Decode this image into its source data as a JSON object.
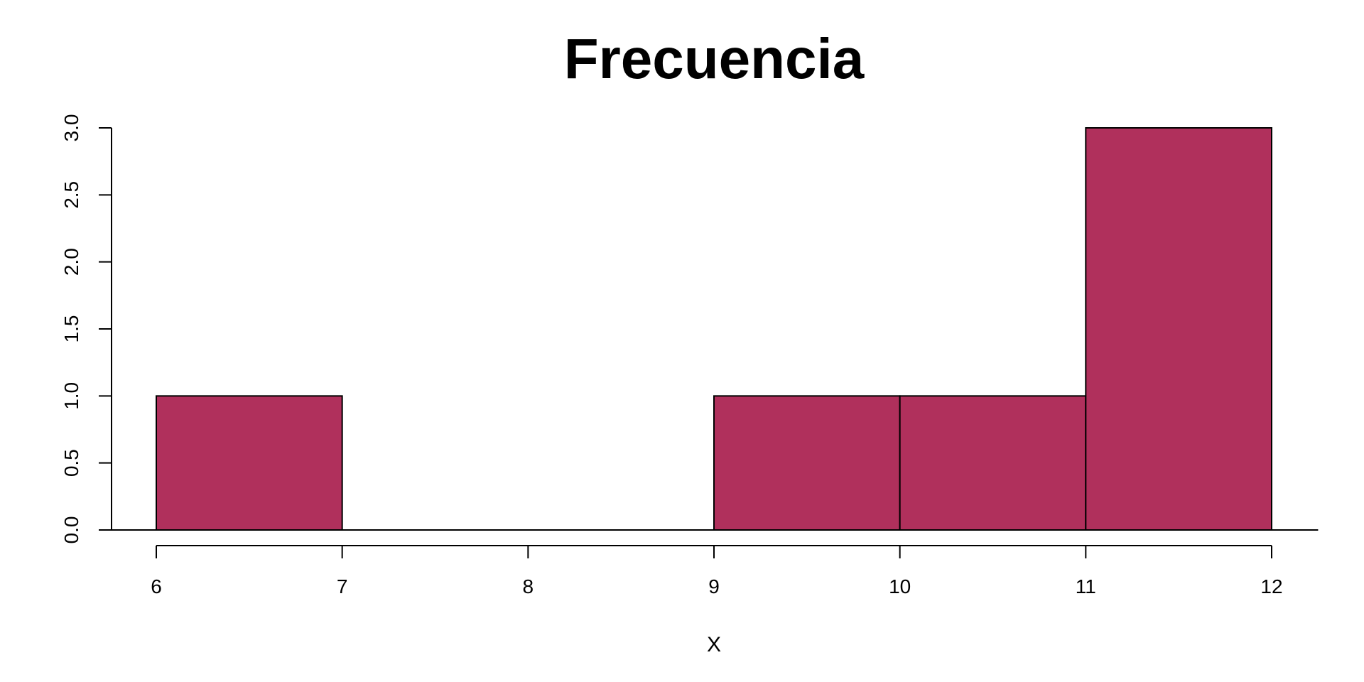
{
  "chart_data": {
    "type": "bar",
    "title": "Frecuencia",
    "xlabel": "X",
    "ylabel": "",
    "bins": [
      {
        "x0": 6,
        "x1": 7,
        "value": 1
      },
      {
        "x0": 7,
        "x1": 8,
        "value": 0
      },
      {
        "x0": 8,
        "x1": 9,
        "value": 0
      },
      {
        "x0": 9,
        "x1": 10,
        "value": 1
      },
      {
        "x0": 10,
        "x1": 11,
        "value": 1
      },
      {
        "x0": 11,
        "x1": 12,
        "value": 3
      }
    ],
    "xlim": [
      5.75,
      12.25
    ],
    "ylim": [
      0,
      3
    ],
    "x_ticks": [
      6,
      7,
      8,
      9,
      10,
      11,
      12
    ],
    "x_tick_labels": [
      "6",
      "7",
      "8",
      "9",
      "10",
      "11",
      "12"
    ],
    "y_ticks": [
      0,
      0.5,
      1,
      1.5,
      2,
      2.5,
      3
    ],
    "y_tick_labels": [
      "0.0",
      "0.5",
      "1.0",
      "1.5",
      "2.0",
      "2.5",
      "3.0"
    ],
    "grid": false,
    "colors": {
      "bar_fill": "#B0305C",
      "bar_stroke": "#000000",
      "axis": "#000000"
    }
  }
}
